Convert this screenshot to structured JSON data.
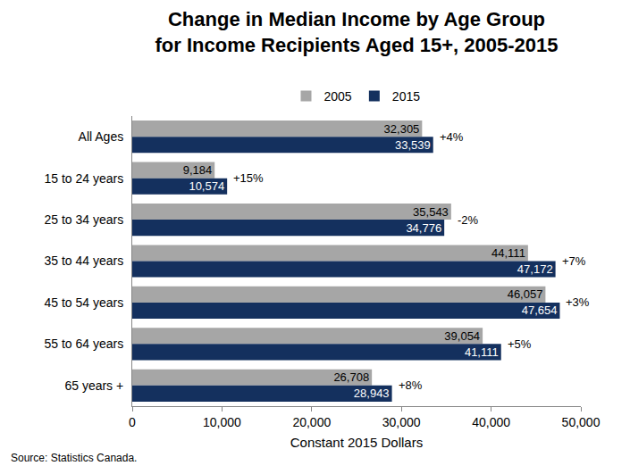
{
  "chart_data": {
    "type": "bar",
    "orientation": "horizontal",
    "title": "Change in Median Income by Age Group\nfor Income Recipients Aged 15+, 2005-2015",
    "xlabel": "Constant 2015 Dollars",
    "note": "Source: Statistics Canada.",
    "categories": [
      "All Ages",
      "15 to 24 years",
      "25 to 34 years",
      "35 to 44 years",
      "45 to 54 years",
      "55 to 64 years",
      "65 years +"
    ],
    "series": [
      {
        "name": "2005",
        "color": "#a6a6a6",
        "values": [
          32305,
          9184,
          35543,
          44111,
          46057,
          39054,
          26708
        ],
        "value_labels": [
          "32,305",
          "9,184",
          "35,543",
          "44,111",
          "46,057",
          "39,054",
          "26,708"
        ]
      },
      {
        "name": "2015",
        "color": "#14305e",
        "values": [
          33539,
          10574,
          34776,
          47172,
          47654,
          41111,
          28943
        ],
        "value_labels": [
          "33,539",
          "10,574",
          "34,776",
          "47,172",
          "47,654",
          "41,111",
          "28,943"
        ]
      }
    ],
    "annotations": [
      {
        "category": "All Ages",
        "text": "+4%"
      },
      {
        "category": "15 to 24 years",
        "text": "+15%"
      },
      {
        "category": "25 to 34 years",
        "text": "-2%"
      },
      {
        "category": "35 to 44 years",
        "text": "+7%"
      },
      {
        "category": "45 to 54 years",
        "text": "+3%"
      },
      {
        "category": "55 to 64 years",
        "text": "+5%"
      },
      {
        "category": "65 years +",
        "text": "+8%"
      }
    ],
    "xlim": [
      0,
      50000
    ],
    "xticks": [
      0,
      {
        "value": 10000,
        "label": "10,000"
      },
      {
        "value": 20000,
        "label": "20,000"
      },
      {
        "value": 30000,
        "label": "30,000"
      },
      {
        "value": 40000,
        "label": "40,000"
      },
      {
        "value": 50000,
        "label": "50,000"
      }
    ],
    "grid": false,
    "legend": "top",
    "data_labels": true
  }
}
